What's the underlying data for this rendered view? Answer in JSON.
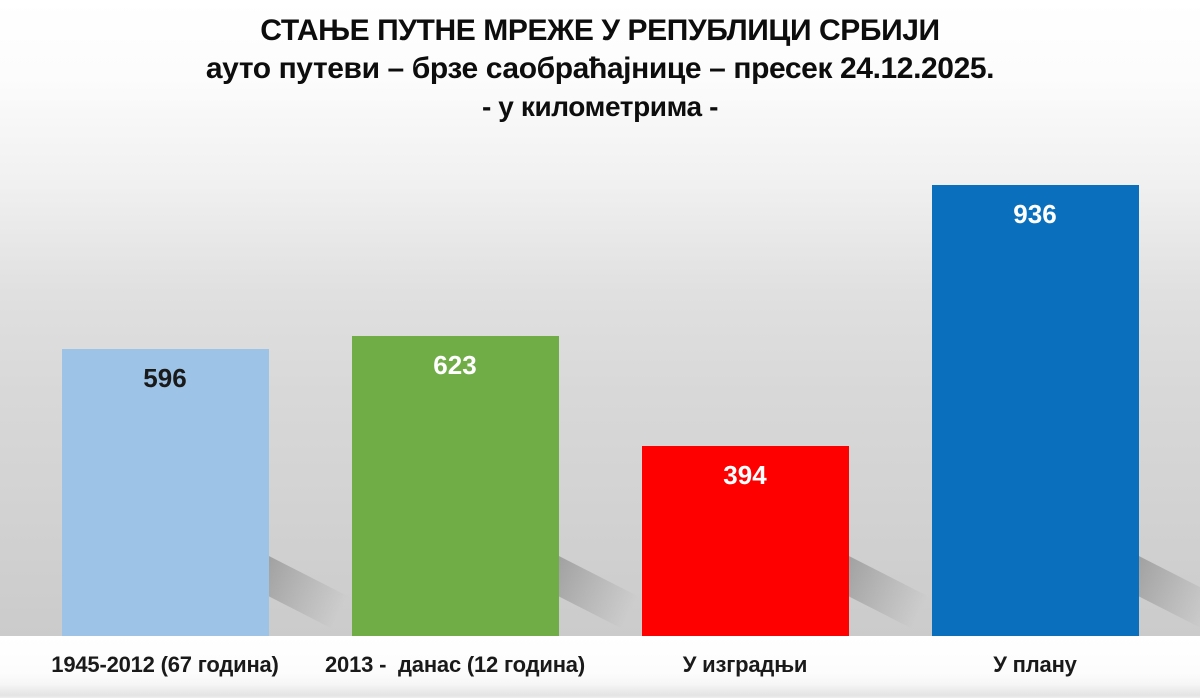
{
  "chart_data": {
    "type": "bar",
    "title": "СТАЊЕ ПУТНЕ МРЕЖЕ У РЕПУБЛИЦИ СРБИЈИ",
    "subtitle": "ауто путеви – брзе саобраћајнице – пресек 24.12.2025.",
    "units_label": "- у километрима -",
    "categories": [
      "1945-2012 (67 година)",
      "2013 -  данас (12 година)",
      "У изградњи",
      "У плану"
    ],
    "values": [
      596,
      623,
      394,
      936
    ],
    "bar_colors": [
      "#9dc3e6",
      "#70ad47",
      "#ff0000",
      "#0a70be"
    ],
    "value_label_colors": [
      "#1a1a1a",
      "#ffffff",
      "#ffffff",
      "#ffffff"
    ],
    "xlabel": "",
    "ylabel": "",
    "ylim": [
      0,
      1000
    ],
    "grid": false,
    "legend": false,
    "axes_visible": false,
    "value_labels_position": "inside-top"
  }
}
